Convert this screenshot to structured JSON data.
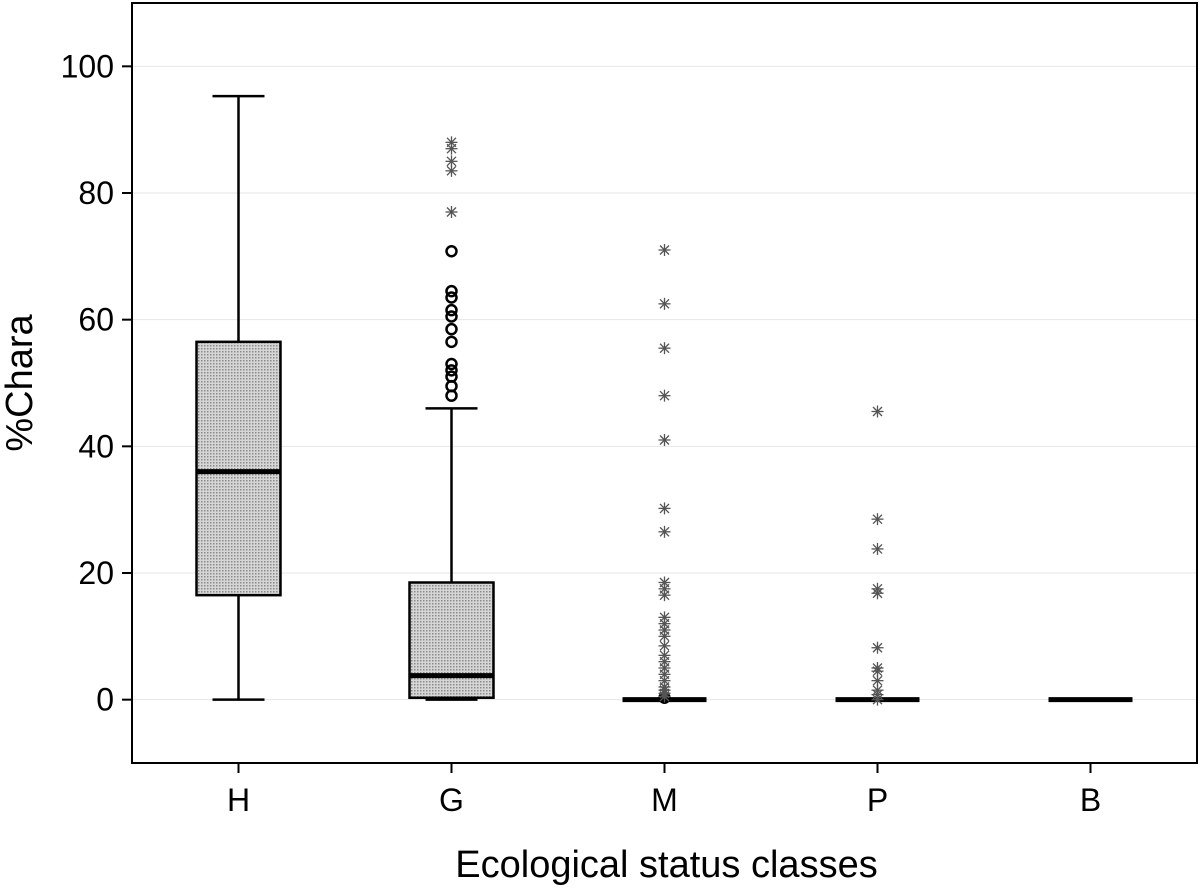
{
  "chart_data": {
    "type": "box",
    "xlabel": "Ecological status classes",
    "ylabel": "%Chara",
    "ylim": [
      -10,
      110
    ],
    "yticks": [
      0,
      20,
      40,
      60,
      80,
      100
    ],
    "grid": "horizontal",
    "categories": [
      "H",
      "G",
      "M",
      "P",
      "B"
    ],
    "boxes": [
      {
        "category": "H",
        "whisker_low": 0,
        "q1": 16.5,
        "median": 36,
        "q3": 56.5,
        "whisker_high": 95.3,
        "outliers": [],
        "extremes": []
      },
      {
        "category": "G",
        "whisker_low": 0,
        "q1": 0.3,
        "median": 3.8,
        "q3": 18.5,
        "whisker_high": 46,
        "outliers": [
          48,
          49.5,
          51,
          52,
          53,
          56.5,
          58.5,
          60.5,
          61.5,
          63.5,
          64.5,
          70.8
        ],
        "extremes": [
          77,
          83.5,
          85,
          87,
          88
        ]
      },
      {
        "category": "M",
        "whisker_low": 0,
        "q1": 0,
        "median": 0,
        "q3": 0,
        "whisker_high": 0,
        "outliers": [
          0.3
        ],
        "extremes": [
          0.5,
          1,
          1.5,
          2,
          3,
          4,
          5,
          6,
          7,
          8.5,
          10,
          11,
          12,
          13,
          16.5,
          17.5,
          18.5,
          26.5,
          30.2,
          41,
          48,
          55.5,
          62.5,
          71
        ]
      },
      {
        "category": "P",
        "whisker_low": 0,
        "q1": 0,
        "median": 0,
        "q3": 0,
        "whisker_high": 0,
        "outliers": [],
        "extremes": [
          0,
          0.8,
          1.5,
          3,
          4.5,
          5,
          8.2,
          16.8,
          17.5,
          23.8,
          28.5,
          45.5
        ]
      },
      {
        "category": "B",
        "whisker_low": 0,
        "q1": 0,
        "median": 0,
        "q3": 0,
        "whisker_high": 0,
        "outliers": [],
        "extremes": []
      }
    ],
    "colors": {
      "box_fill": "#c9c9c9",
      "line": "#000000",
      "extreme": "#555555",
      "grid": "#e6e6e6"
    }
  }
}
